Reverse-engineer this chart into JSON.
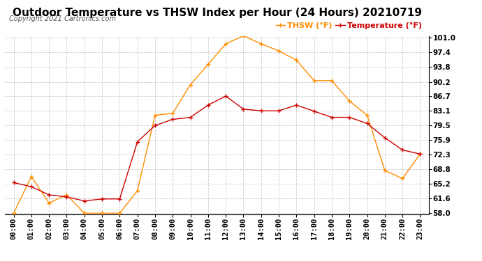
{
  "title": "Outdoor Temperature vs THSW Index per Hour (24 Hours) 20210719",
  "copyright": "Copyright 2021 Cartronics.com",
  "legend_thsw": "THSW (°F)",
  "legend_temp": "Temperature (°F)",
  "hours": [
    "00:00",
    "01:00",
    "02:00",
    "03:00",
    "04:00",
    "05:00",
    "06:00",
    "07:00",
    "08:00",
    "09:00",
    "10:00",
    "11:00",
    "12:00",
    "13:00",
    "14:00",
    "15:00",
    "16:00",
    "17:00",
    "18:00",
    "19:00",
    "20:00",
    "21:00",
    "22:00",
    "23:00"
  ],
  "thsw": [
    58.0,
    67.0,
    60.5,
    62.5,
    58.0,
    58.0,
    58.0,
    63.5,
    82.0,
    82.5,
    89.5,
    94.5,
    99.5,
    101.5,
    99.5,
    97.8,
    95.5,
    90.5,
    90.5,
    85.5,
    82.0,
    68.5,
    66.5,
    72.5
  ],
  "temperature": [
    65.5,
    64.5,
    62.5,
    62.0,
    61.0,
    61.5,
    61.5,
    75.5,
    79.5,
    81.0,
    81.5,
    84.5,
    86.7,
    83.5,
    83.1,
    83.1,
    84.5,
    83.0,
    81.5,
    81.5,
    80.0,
    76.5,
    73.5,
    72.5
  ],
  "thsw_color": "#FF8C00",
  "temp_color": "#CC0000",
  "background_color": "#ffffff",
  "grid_color": "#CCCCCC",
  "title_color": "#000000",
  "copyright_color": "#555555",
  "ylim_min": 58.0,
  "ylim_max": 101.0,
  "yticks": [
    58.0,
    61.6,
    65.2,
    68.8,
    72.3,
    75.9,
    79.5,
    83.1,
    86.7,
    90.2,
    93.8,
    97.4,
    101.0
  ],
  "title_fontsize": 11,
  "tick_fontsize": 7.5,
  "legend_fontsize": 8,
  "copyright_fontsize": 7
}
